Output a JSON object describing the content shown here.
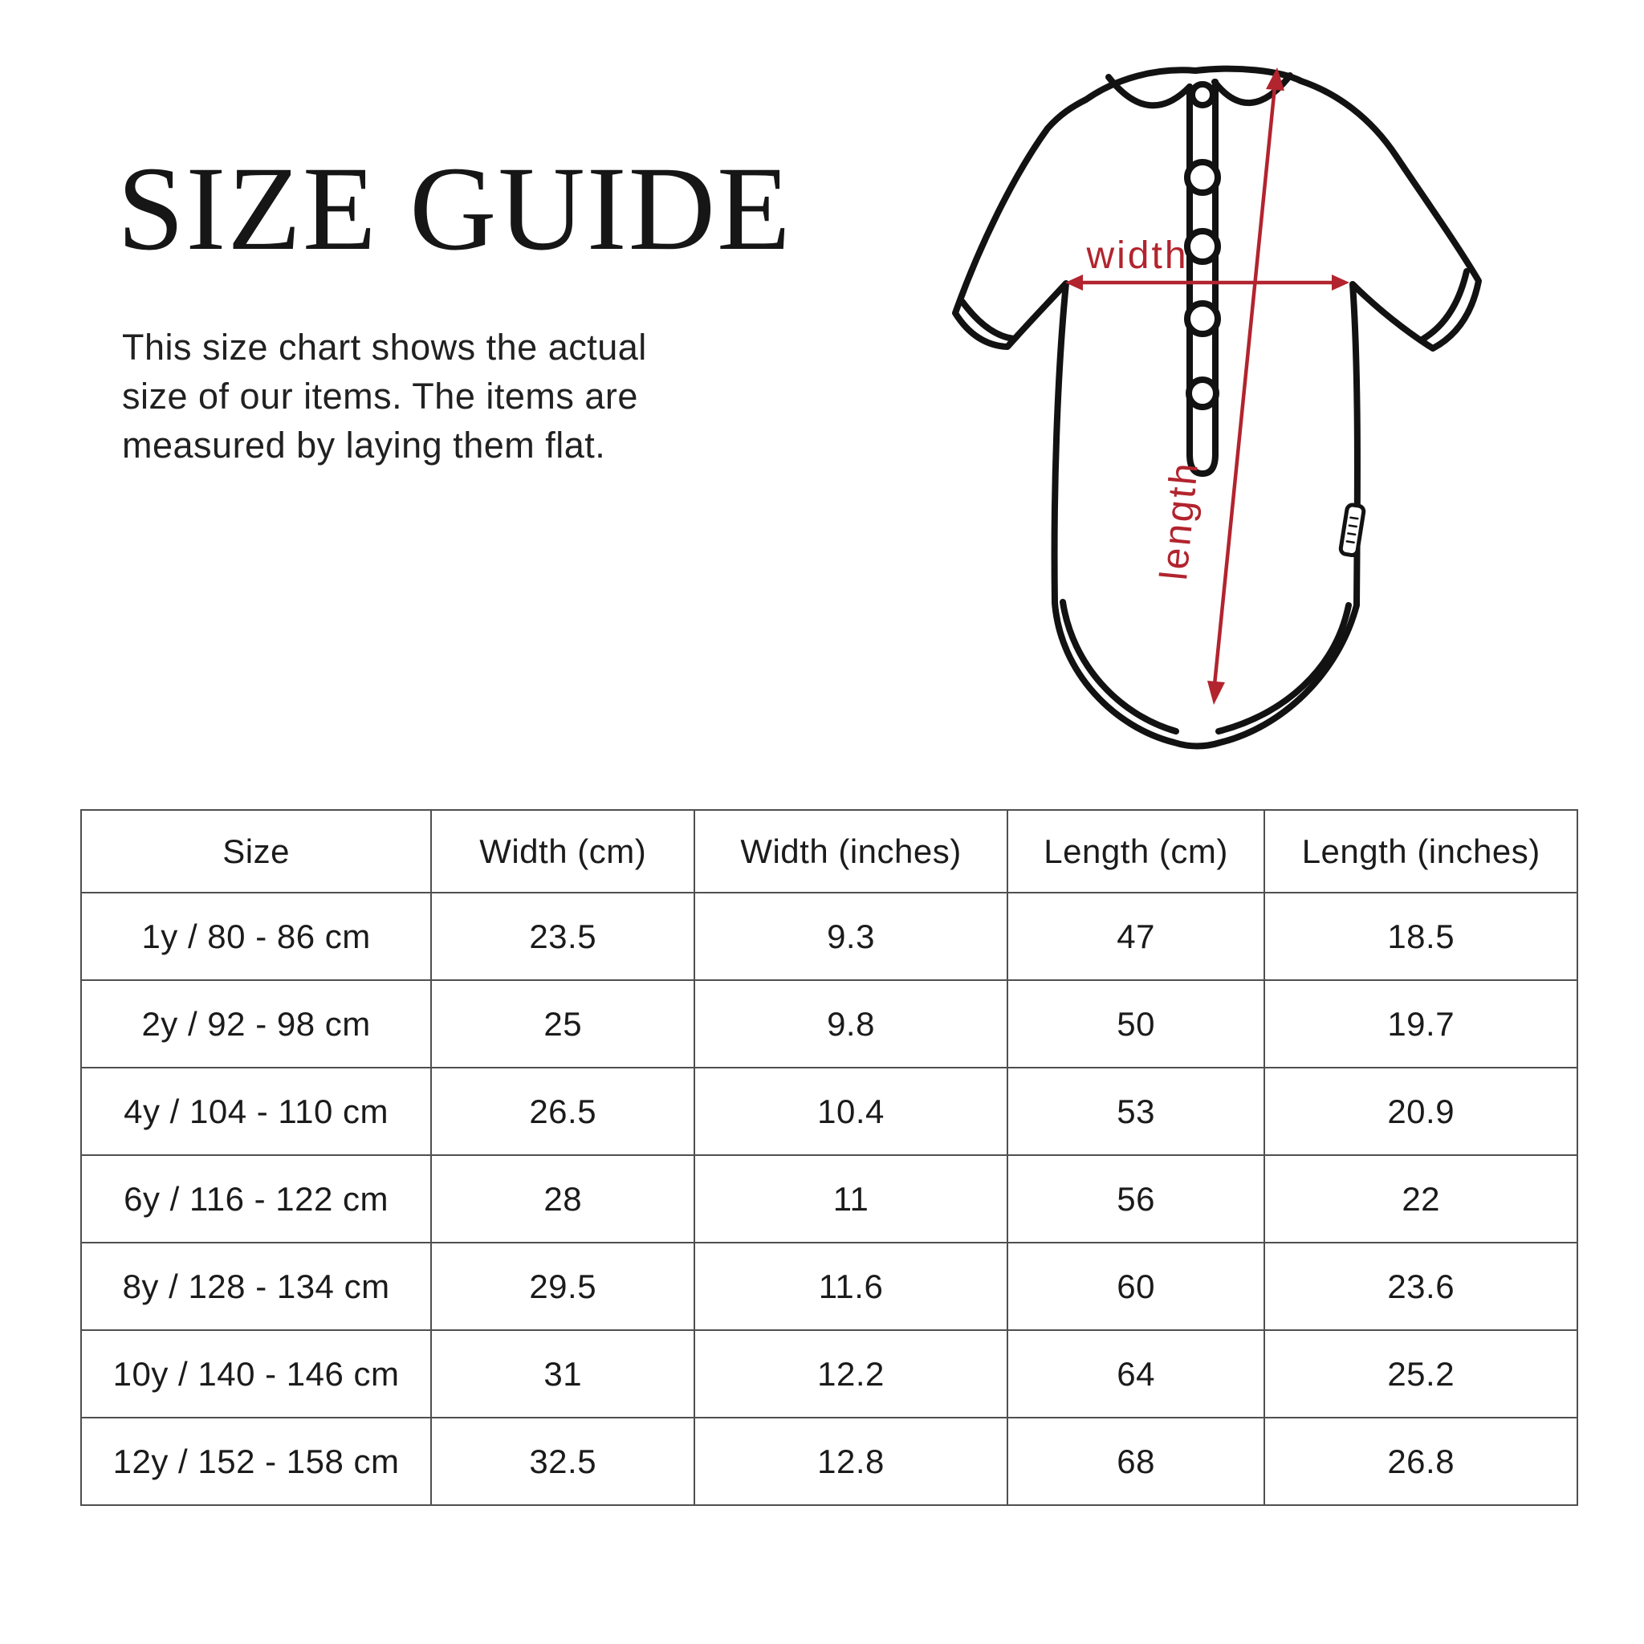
{
  "header": {
    "title": "SIZE GUIDE",
    "description_lines": [
      "This size chart shows the actual",
      "size of our items. The items are",
      "measured by laying them flat."
    ]
  },
  "diagram": {
    "figure": "bodysuit-back-outline",
    "width_label": "width",
    "length_label": "length",
    "accent_color": "#b2242e",
    "line_color": "#121212"
  },
  "table": {
    "columns": [
      "Size",
      "Width (cm)",
      "Width (inches)",
      "Length (cm)",
      "Length (inches)"
    ],
    "rows": [
      [
        "1y / 80 - 86 cm",
        "23.5",
        "9.3",
        "47",
        "18.5"
      ],
      [
        "2y / 92 - 98 cm",
        "25",
        "9.8",
        "50",
        "19.7"
      ],
      [
        "4y / 104 - 110 cm",
        "26.5",
        "10.4",
        "53",
        "20.9"
      ],
      [
        "6y / 116 - 122 cm",
        "28",
        "11",
        "56",
        "22"
      ],
      [
        "8y / 128 - 134 cm",
        "29.5",
        "11.6",
        "60",
        "23.6"
      ],
      [
        "10y / 140 - 146 cm",
        "31",
        "12.2",
        "64",
        "25.2"
      ],
      [
        "12y / 152 - 158 cm",
        "32.5",
        "12.8",
        "68",
        "26.8"
      ]
    ]
  }
}
